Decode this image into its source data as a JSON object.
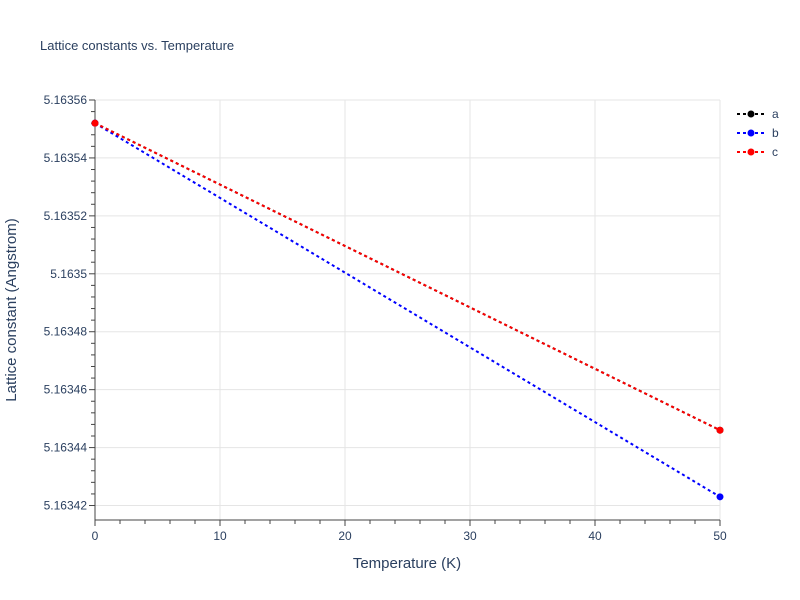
{
  "chart_data": {
    "type": "line",
    "title": "Lattice constants vs. Temperature",
    "xlabel": "Temperature (K)",
    "ylabel": "Lattice constant (Angstrom)",
    "xlim": [
      0,
      50
    ],
    "ylim": [
      5.163415,
      5.16356
    ],
    "x_ticks": [
      0,
      10,
      20,
      30,
      40,
      50
    ],
    "y_ticks": [
      5.16342,
      5.16344,
      5.16346,
      5.16348,
      5.1635,
      5.16352,
      5.16354,
      5.16356
    ],
    "y_tick_labels": [
      "5.16342",
      "5.16344",
      "5.16346",
      "5.16348",
      "5.1635",
      "5.16352",
      "5.16354",
      "5.16356"
    ],
    "grid": true,
    "legend_position": "top-right",
    "x": [
      0,
      50
    ],
    "series": [
      {
        "name": "a",
        "color": "#000000",
        "values": [
          5.163552,
          5.163446
        ]
      },
      {
        "name": "b",
        "color": "#0000ff",
        "values": [
          5.163552,
          5.163423
        ]
      },
      {
        "name": "c",
        "color": "#ff0000",
        "values": [
          5.163552,
          5.163446
        ]
      }
    ]
  }
}
